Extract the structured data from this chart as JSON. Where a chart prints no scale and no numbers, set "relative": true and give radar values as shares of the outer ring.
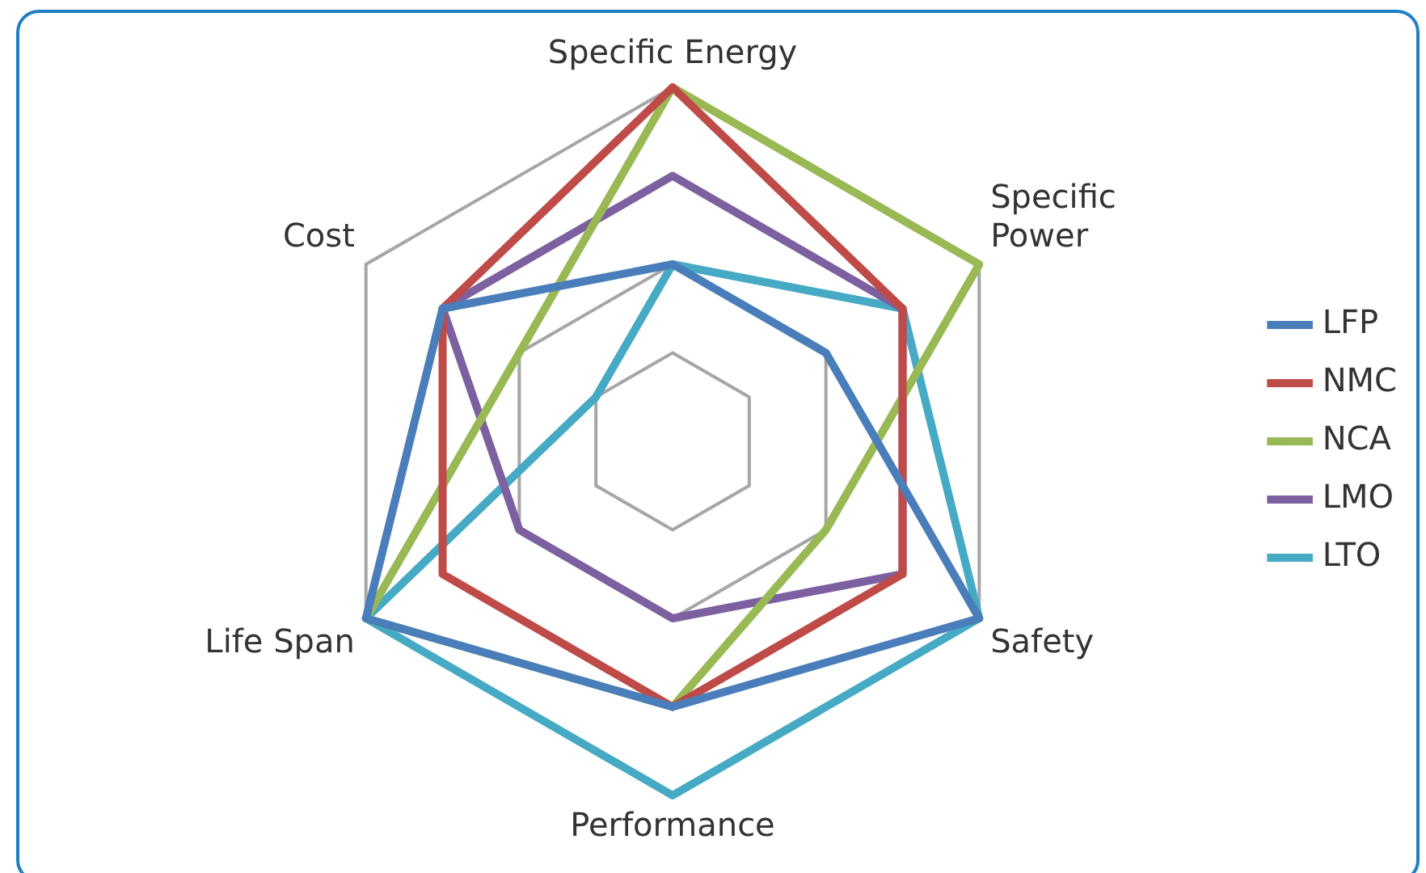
{
  "chart_data": {
    "type": "radar",
    "relative": true,
    "grid": true,
    "legend": "right",
    "categories": [
      "Specific Energy",
      "Specific Power",
      "Safety",
      "Performance",
      "Life Span",
      "Cost"
    ],
    "series": [
      {
        "name": "LFP",
        "color": "#4a7ebb",
        "values": [
          0.5,
          0.5,
          1,
          0.75,
          1,
          0.75
        ]
      },
      {
        "name": "NMC",
        "color": "#be4b48",
        "values": [
          1,
          0.75,
          0.75,
          0.75,
          0.75,
          0.75
        ]
      },
      {
        "name": "NCA",
        "color": "#98b954",
        "values": [
          1,
          1,
          0.5,
          0.75,
          1,
          0.5
        ]
      },
      {
        "name": "LMO",
        "color": "#7d60a0",
        "values": [
          0.75,
          0.75,
          0.75,
          0.5,
          0.5,
          0.75
        ]
      },
      {
        "name": "LTO",
        "color": "#46aac5",
        "values": [
          0.5,
          0.75,
          1,
          1,
          1,
          0.25
        ]
      }
    ]
  }
}
